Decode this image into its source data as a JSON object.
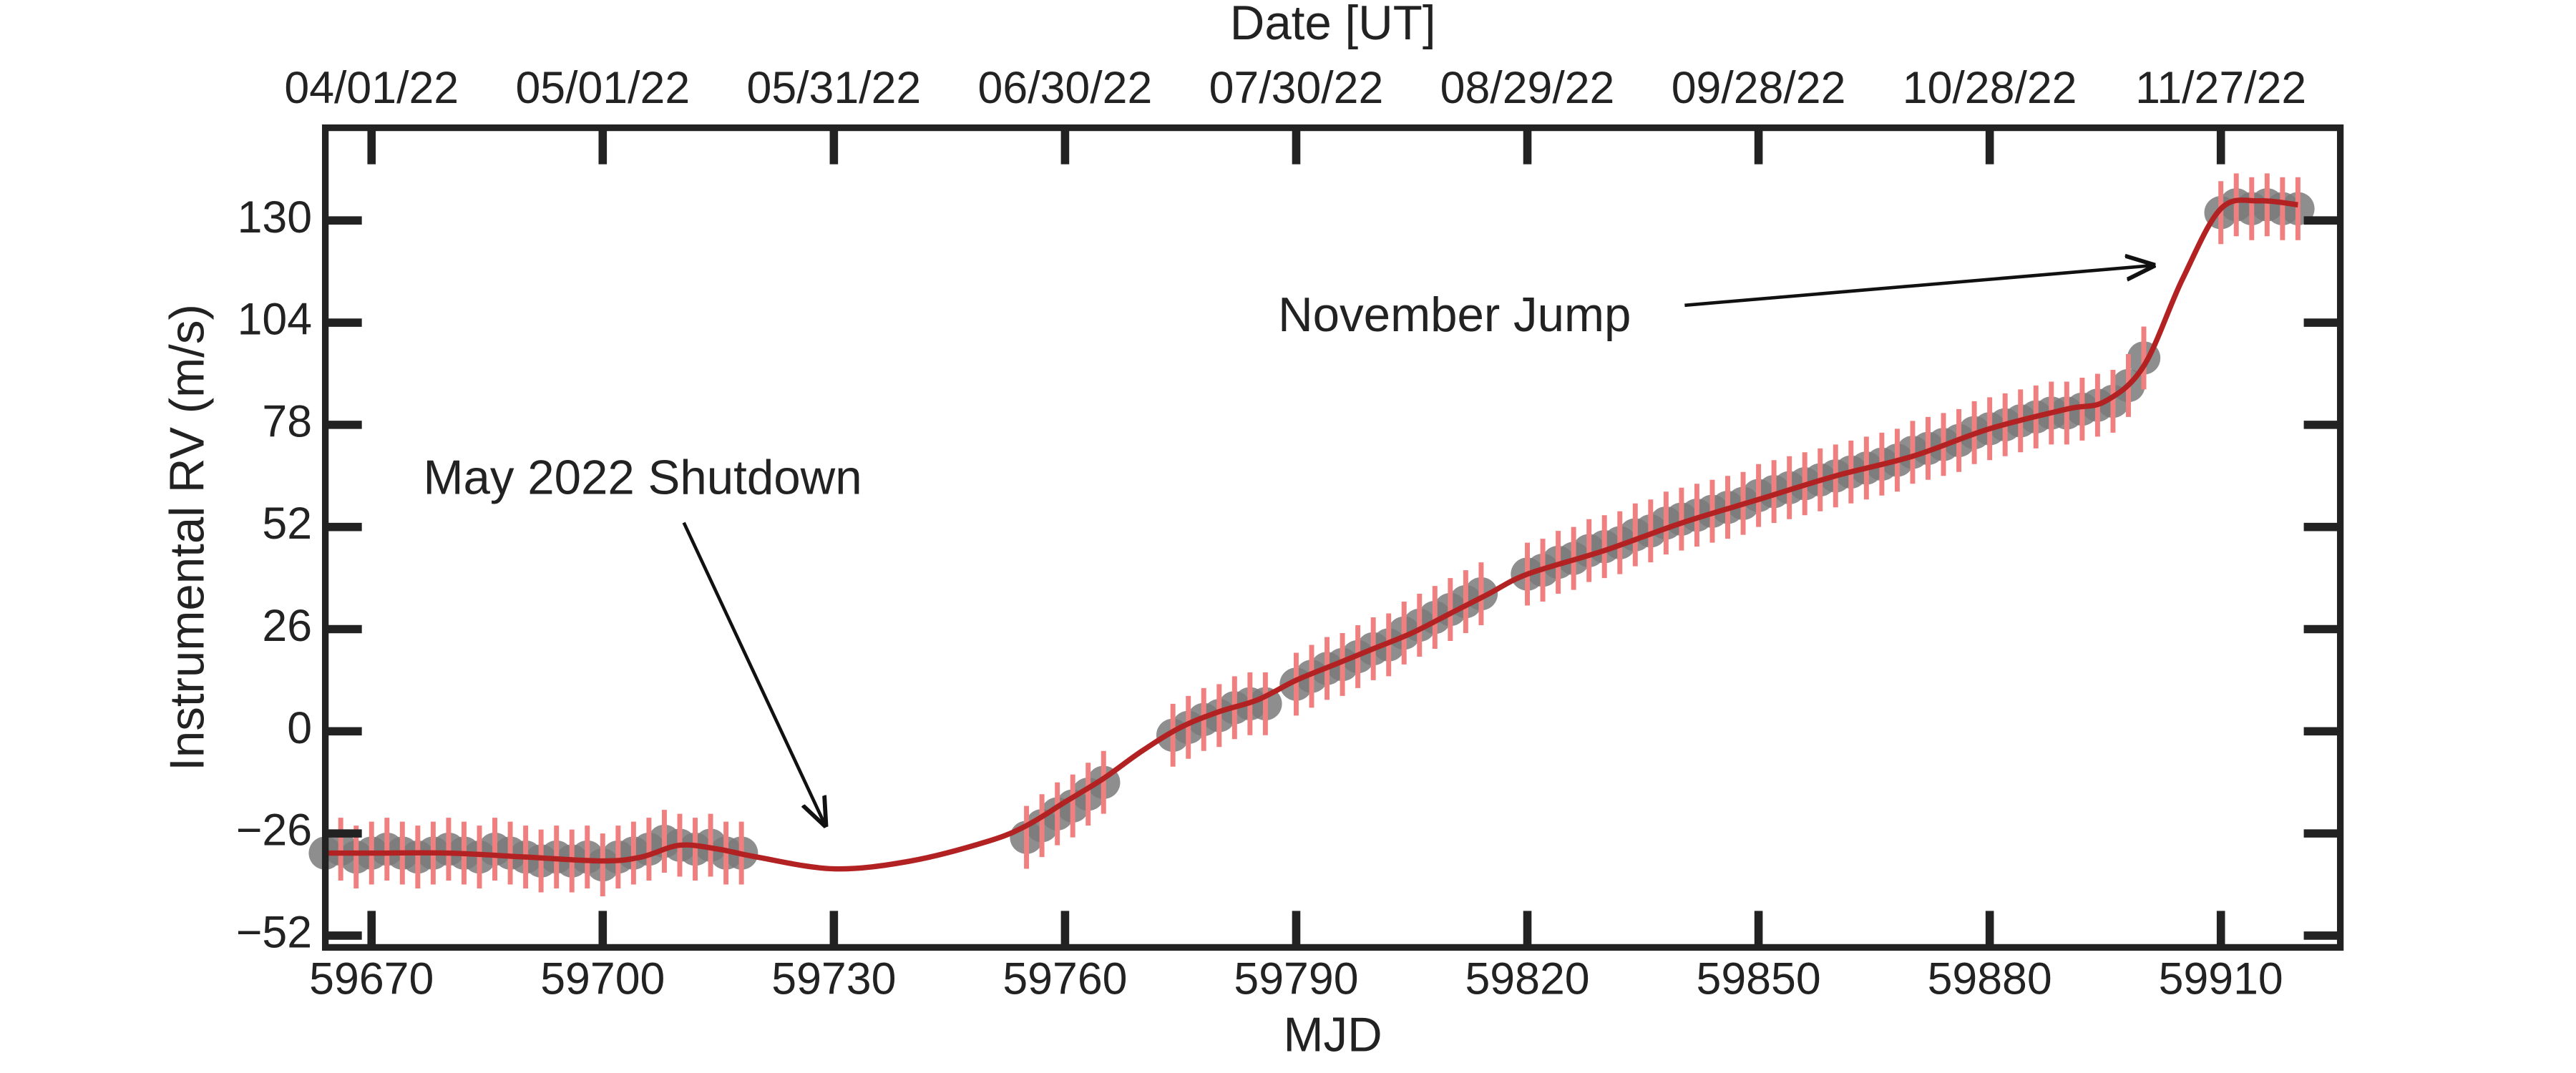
{
  "chart_data": {
    "type": "scatter",
    "xlabel": "MJD",
    "x2label": "Date [UT]",
    "ylabel": "Instrumental RV (m/s)",
    "xlim": [
      59664,
      59925.5
    ],
    "ylim": [
      -55,
      153.6
    ],
    "xticks": [
      59670,
      59700,
      59730,
      59760,
      59790,
      59820,
      59850,
      59880,
      59910
    ],
    "x2ticks": [
      {
        "value": 59670,
        "label": "04/01/22"
      },
      {
        "value": 59700,
        "label": "05/01/22"
      },
      {
        "value": 59730,
        "label": "05/31/22"
      },
      {
        "value": 59760,
        "label": "06/30/22"
      },
      {
        "value": 59790,
        "label": "07/30/22"
      },
      {
        "value": 59820,
        "label": "08/29/22"
      },
      {
        "value": 59850,
        "label": "09/28/22"
      },
      {
        "value": 59880,
        "label": "10/28/22"
      },
      {
        "value": 59910,
        "label": "11/27/22"
      }
    ],
    "yticks": [
      {
        "value": -52,
        "label": "−52"
      },
      {
        "value": -26,
        "label": "−26"
      },
      0,
      26,
      52,
      78,
      104,
      130
    ],
    "grid": false,
    "points": {
      "color": "#7a7a7a",
      "error_color": "#f08080",
      "x": [
        59664,
        59666,
        59668,
        59670,
        59672,
        59674,
        59676,
        59678,
        59680,
        59682,
        59684,
        59686,
        59688,
        59690,
        59692,
        59694,
        59696,
        59698,
        59700,
        59702,
        59704,
        59706,
        59708,
        59710,
        59712,
        59714,
        59716,
        59718,
        59755,
        59757,
        59759,
        59761,
        59763,
        59765,
        59774,
        59776,
        59778,
        59780,
        59782,
        59784,
        59786,
        59790,
        59792,
        59794,
        59796,
        59798,
        59800,
        59802,
        59804,
        59806,
        59808,
        59810,
        59812,
        59814,
        59820,
        59822,
        59824,
        59826,
        59828,
        59830,
        59832,
        59834,
        59836,
        59838,
        59840,
        59842,
        59844,
        59846,
        59848,
        59850,
        59852,
        59854,
        59856,
        59858,
        59860,
        59862,
        59864,
        59866,
        59868,
        59870,
        59872,
        59874,
        59876,
        59878,
        59880,
        59882,
        59884,
        59886,
        59888,
        59890,
        59892,
        59894,
        59896,
        59898,
        59900,
        59910,
        59912,
        59914,
        59916,
        59918,
        59920
      ],
      "values": [
        -31,
        -30,
        -32,
        -31,
        -30,
        -31,
        -32,
        -31,
        -30,
        -31,
        -32,
        -30,
        -31,
        -32,
        -33,
        -32,
        -33,
        -32,
        -34,
        -32,
        -31,
        -30,
        -28,
        -29,
        -30,
        -29,
        -31,
        -31,
        -27,
        -24,
        -21,
        -19,
        -16,
        -13,
        -1,
        1,
        3,
        4,
        6,
        7,
        7,
        12,
        14,
        16,
        17,
        19,
        21,
        22,
        25,
        27,
        29,
        31,
        33,
        35,
        40,
        41,
        43,
        44,
        46,
        47,
        48,
        50,
        51,
        53,
        54,
        55,
        56,
        57,
        58,
        60,
        61,
        62,
        63,
        64,
        65,
        66,
        67,
        68,
        69,
        71,
        72,
        73,
        74,
        76,
        77,
        78,
        79,
        80,
        81,
        81,
        82,
        83,
        84,
        88,
        95,
        132,
        134,
        133,
        134,
        133,
        133
      ],
      "errors": [
        8,
        8,
        8,
        8,
        8,
        8,
        8,
        8,
        8,
        8,
        8,
        8,
        8,
        8,
        8,
        8,
        8,
        8,
        8,
        8,
        8,
        8,
        8,
        8,
        8,
        8,
        8,
        8,
        8,
        8,
        8,
        8,
        8,
        8,
        8,
        8,
        8,
        8,
        8,
        8,
        8,
        8,
        8,
        8,
        8,
        8,
        8,
        8,
        8,
        8,
        8,
        8,
        8,
        8,
        8,
        8,
        8,
        8,
        8,
        8,
        8,
        8,
        8,
        8,
        8,
        8,
        8,
        8,
        8,
        8,
        8,
        8,
        8,
        8,
        8,
        8,
        8,
        8,
        8,
        8,
        8,
        8,
        8,
        8,
        8,
        8,
        8,
        8,
        8,
        8,
        8,
        8,
        8,
        8,
        8,
        8,
        8,
        8,
        8,
        8,
        8
      ]
    },
    "fit": {
      "color": "#b22222",
      "x": [
        59664,
        59670,
        59680,
        59690,
        59700,
        59705,
        59710,
        59715,
        59720,
        59730,
        59740,
        59750,
        59755,
        59760,
        59765,
        59770,
        59775,
        59780,
        59785,
        59790,
        59795,
        59800,
        59805,
        59810,
        59815,
        59820,
        59830,
        59840,
        59850,
        59860,
        59870,
        59880,
        59890,
        59895,
        59900,
        59905,
        59910,
        59915,
        59920
      ],
      "values": [
        -31,
        -31,
        -31,
        -32,
        -33,
        -32,
        -29,
        -30,
        -32,
        -35,
        -33,
        -28,
        -24,
        -18,
        -12,
        -5,
        1,
        5,
        8,
        13,
        17,
        21,
        25,
        30,
        35,
        40,
        46,
        53,
        59,
        65,
        70,
        77,
        82,
        84,
        93,
        115,
        133,
        135,
        134
      ]
    },
    "annotations": [
      {
        "text": "May 2022 Shutdown"
      },
      {
        "text": "November Jump"
      }
    ]
  }
}
